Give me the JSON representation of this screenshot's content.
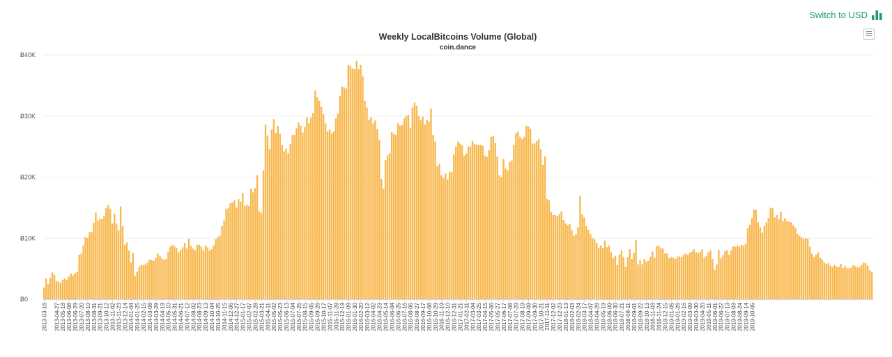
{
  "header": {
    "switch_label": "Switch to USD",
    "switch_icon": "bar-chart-icon",
    "menu_icon": "hamburger-menu-icon"
  },
  "colors": {
    "bar": "#f8b84e",
    "bar_edge": "#ffffff",
    "grid": "#eeeeee",
    "accent": "#1a9a78"
  },
  "chart_data": {
    "type": "bar",
    "title": "Weekly LocalBitcoins Volume (Global)",
    "subtitle": "coin.dance",
    "xlabel": "",
    "ylabel": "",
    "ylim": [
      0,
      40000
    ],
    "y_ticks": [
      0,
      10000,
      20000,
      30000,
      40000
    ],
    "y_tick_labels": [
      "Ƀ0",
      "Ƀ10K",
      "Ƀ20K",
      "Ƀ30K",
      "Ƀ40K"
    ],
    "grid": true,
    "x_start": "2013-03-16",
    "x_tick_labels": [
      "2013-03-16",
      "2013-04-27",
      "2013-05-18",
      "2013-06-08",
      "2013-06-29",
      "2013-07-20",
      "2013-08-10",
      "2013-08-31",
      "2013-09-21",
      "2013-10-12",
      "2013-11-02",
      "2013-11-23",
      "2013-12-14",
      "2014-01-04",
      "2014-01-25",
      "2014-02-15",
      "2014-03-08",
      "2014-03-29",
      "2014-04-19",
      "2014-05-10",
      "2014-05-31",
      "2014-06-21",
      "2014-07-12",
      "2014-08-02",
      "2014-08-23",
      "2014-09-13",
      "2014-10-04",
      "2014-10-25",
      "2014-11-15",
      "2014-12-06",
      "2014-12-27",
      "2015-01-17",
      "2015-02-07",
      "2015-02-28",
      "2015-03-21",
      "2015-04-11",
      "2015-05-02",
      "2015-05-23",
      "2015-06-13",
      "2015-07-04",
      "2015-07-25",
      "2015-08-15",
      "2015-09-05",
      "2015-09-26",
      "2015-10-17",
      "2015-11-07",
      "2015-11-28",
      "2015-12-19",
      "2016-01-09",
      "2016-01-30",
      "2016-02-20",
      "2016-03-12",
      "2016-04-02",
      "2016-04-23",
      "2016-05-14",
      "2016-06-04",
      "2016-06-25",
      "2016-07-16",
      "2016-08-06",
      "2016-08-27",
      "2016-09-17",
      "2016-10-08",
      "2016-10-29",
      "2016-11-19",
      "2016-12-10",
      "2016-12-31",
      "2017-01-21",
      "2017-02-11",
      "2017-03-04",
      "2017-03-25",
      "2017-04-15",
      "2017-05-06",
      "2017-05-27",
      "2017-06-17",
      "2017-07-08",
      "2017-07-29",
      "2017-08-19",
      "2017-09-09",
      "2017-09-30",
      "2017-10-21",
      "2017-11-11",
      "2017-12-02",
      "2017-12-23",
      "2018-01-13",
      "2018-02-03",
      "2018-02-24",
      "2018-03-17",
      "2018-04-07",
      "2018-04-28",
      "2018-05-19",
      "2018-06-09",
      "2018-06-30",
      "2018-07-21",
      "2018-08-11",
      "2018-09-01",
      "2018-09-22",
      "2018-10-13",
      "2018-11-03",
      "2018-11-24",
      "2018-12-15",
      "2019-01-05",
      "2019-01-26",
      "2019-02-16",
      "2019-03-09",
      "2019-03-30",
      "2019-04-20",
      "2019-05-11",
      "2019-06-01",
      "2019-06-22",
      "2019-07-13",
      "2019-08-03",
      "2019-08-24",
      "2019-09-14",
      "2019-10-05"
    ],
    "values": [
      1900,
      3400,
      2500,
      3500,
      4400,
      4000,
      3000,
      2900,
      2700,
      3200,
      3400,
      3200,
      3700,
      4200,
      3900,
      4300,
      4500,
      7300,
      7500,
      8800,
      10200,
      10000,
      11000,
      11000,
      12500,
      14200,
      12900,
      13200,
      13100,
      13600,
      14900,
      15400,
      14800,
      12400,
      14000,
      12400,
      11300,
      15200,
      12000,
      8900,
      9300,
      8000,
      6000,
      7600,
      3800,
      4500,
      5300,
      5600,
      5600,
      5700,
      6000,
      6500,
      6400,
      6300,
      6800,
      7500,
      7100,
      6700,
      6500,
      6600,
      7800,
      8600,
      8900,
      8700,
      8400,
      7700,
      8100,
      8500,
      9200,
      8300,
      9900,
      8700,
      8300,
      8000,
      8900,
      8900,
      8600,
      8000,
      8800,
      8500,
      8000,
      8200,
      8800,
      9800,
      10200,
      10400,
      12000,
      12900,
      14800,
      14900,
      15700,
      15900,
      16200,
      15000,
      16400,
      16000,
      17400,
      15300,
      15500,
      15300,
      18100,
      17500,
      18200,
      20300,
      14400,
      14100,
      21100,
      28600,
      26800,
      24600,
      27800,
      29500,
      27200,
      28400,
      27100,
      25300,
      24200,
      24700,
      23900,
      25400,
      26900,
      26900,
      28000,
      28900,
      28400,
      27300,
      28200,
      29800,
      28800,
      29800,
      30500,
      34200,
      33100,
      32500,
      31500,
      30300,
      28800,
      27500,
      27800,
      27200,
      27500,
      29600,
      30400,
      33300,
      34800,
      34700,
      34500,
      38400,
      38200,
      37800,
      37700,
      39000,
      37700,
      38400,
      36500,
      32500,
      31400,
      29400,
      29800,
      28800,
      29300,
      27900,
      26100,
      19700,
      18100,
      22800,
      23600,
      23900,
      27400,
      27100,
      26900,
      28800,
      28400,
      28500,
      29600,
      30000,
      30200,
      28100,
      31400,
      32200,
      31700,
      30000,
      29300,
      29900,
      28600,
      29400,
      29100,
      31200,
      26900,
      25800,
      21800,
      22200,
      20300,
      19800,
      20600,
      19600,
      20900,
      20800,
      23700,
      25000,
      25800,
      25500,
      25200,
      23500,
      23900,
      25000,
      25000,
      25900,
      25400,
      25300,
      25300,
      25300,
      25100,
      23500,
      23300,
      24400,
      26600,
      26800,
      25600,
      23400,
      20300,
      20000,
      23000,
      21400,
      21100,
      22500,
      22700,
      25300,
      27200,
      27400,
      26600,
      26200,
      26600,
      28400,
      28300,
      27900,
      25500,
      25500,
      25900,
      26200,
      24600,
      22000,
      23400,
      16400,
      16200,
      14300,
      13800,
      13800,
      13600,
      13900,
      14400,
      13000,
      12400,
      12100,
      12300,
      11300,
      10400,
      10700,
      11800,
      16900,
      13900,
      13400,
      12000,
      11400,
      10700,
      10000,
      9800,
      9200,
      8400,
      8800,
      8400,
      9600,
      8500,
      8800,
      7700,
      6700,
      7100,
      5600,
      7300,
      8000,
      6900,
      5300,
      6900,
      8200,
      6600,
      7600,
      9700,
      5700,
      6400,
      5700,
      6600,
      6200,
      6300,
      7000,
      7800,
      6800,
      8700,
      8800,
      8400,
      8300,
      7500,
      7500,
      6700,
      6900,
      6800,
      6600,
      7000,
      7000,
      6900,
      7300,
      7500,
      7300,
      7600,
      7800,
      8200,
      7700,
      7600,
      7700,
      8200,
      6800,
      7100,
      7700,
      8000,
      6600,
      4800,
      5700,
      8100,
      6700,
      7200,
      7900,
      8000,
      7300,
      8000,
      8700,
      8600,
      8800,
      8600,
      8900,
      8800,
      9100,
      11600,
      12200,
      13300,
      14700,
      14600,
      12600,
      11800,
      10900,
      12000,
      12600,
      13300,
      15000,
      14900,
      13400,
      13800,
      13100,
      14300,
      12800,
      13300,
      12800,
      12700,
      12600,
      12100,
      11700,
      10700,
      10400,
      10100,
      9900,
      10000,
      9900,
      8600,
      7500,
      6900,
      7300,
      7700,
      6800,
      6500,
      6000,
      5800,
      5900,
      5500,
      5300,
      5600,
      5300,
      5300,
      5800,
      5100,
      5500,
      5100,
      5100,
      5200,
      5600,
      5400,
      5200,
      5300,
      5600,
      6000,
      5900,
      5500,
      4800,
      4400
    ]
  }
}
